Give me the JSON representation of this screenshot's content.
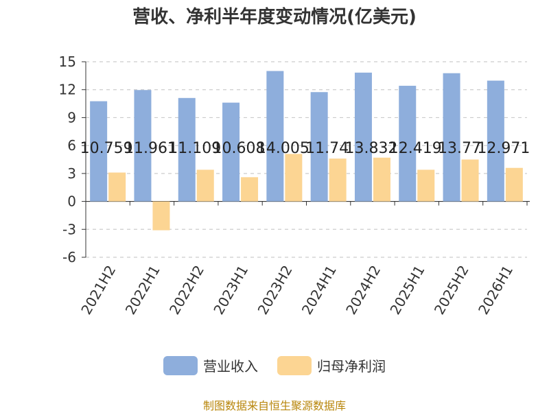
{
  "chart_data": {
    "type": "bar",
    "title": "营收、净利半年度变动情况(亿美元)",
    "categories": [
      "2021H2",
      "2022H1",
      "2022H2",
      "2023H1",
      "2023H2",
      "2024H1",
      "2024H2",
      "2025H1",
      "2025H2",
      "2026H1"
    ],
    "series": [
      {
        "name": "营业收入",
        "color": "#8eaedc",
        "values": [
          10.759,
          11.961,
          11.109,
          10.608,
          14.005,
          11.74,
          13.832,
          12.419,
          13.77,
          12.971
        ],
        "labels": [
          "10.759",
          "11.961",
          "11.109",
          "10.608",
          "14.005",
          "11.74",
          "13.832",
          "12.419",
          "13.77",
          "12.971"
        ]
      },
      {
        "name": "归母净利润",
        "color": "#fcd593",
        "values": [
          3.1,
          -3.1,
          3.4,
          2.6,
          5.1,
          4.6,
          4.7,
          3.4,
          4.5,
          3.6
        ]
      }
    ],
    "ylim": [
      -6,
      15
    ],
    "yticks": [
      -6,
      -3,
      0,
      3,
      6,
      9,
      12,
      15
    ],
    "grid": true,
    "legend": "bottom",
    "source": "制图数据来自恒生聚源数据库"
  }
}
